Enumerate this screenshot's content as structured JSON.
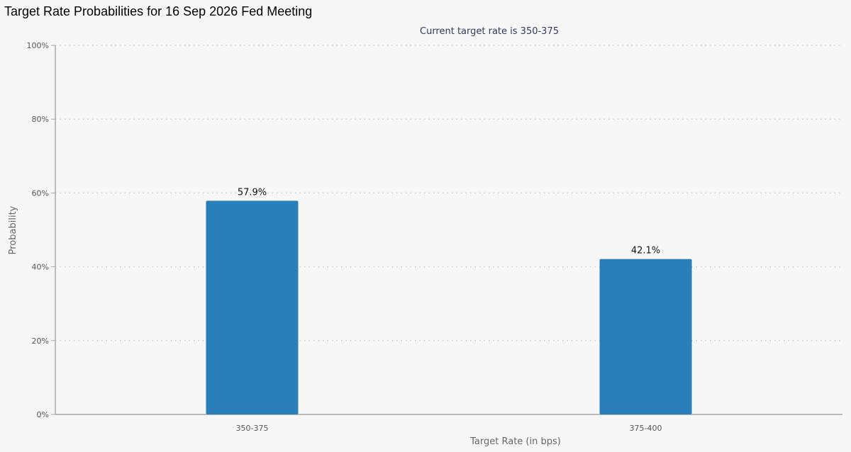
{
  "page": {
    "title": "Target Rate Probabilities for 16 Sep 2026 Fed Meeting"
  },
  "chart_data": {
    "type": "bar",
    "title": "Target Rate Probabilities for 16 Sep 2026 Fed Meeting",
    "subtitle": "Current target rate is 350-375",
    "xlabel": "Target Rate (in bps)",
    "ylabel": "Probability",
    "categories": [
      "350-375",
      "375-400"
    ],
    "values": [
      57.9,
      42.1
    ],
    "data_labels": [
      "57.9%",
      "42.1%"
    ],
    "ylim": [
      0,
      100
    ],
    "yticks": [
      0,
      20,
      40,
      60,
      80,
      100
    ],
    "ytick_labels": [
      "0%",
      "20%",
      "40%",
      "60%",
      "80%",
      "100%"
    ],
    "grid": true,
    "legend": "none",
    "colors": {
      "bar": "#2a7fba",
      "grid": "#d0d0d0",
      "axis": "#a8a8a8",
      "background": "#f7f7f7"
    }
  }
}
